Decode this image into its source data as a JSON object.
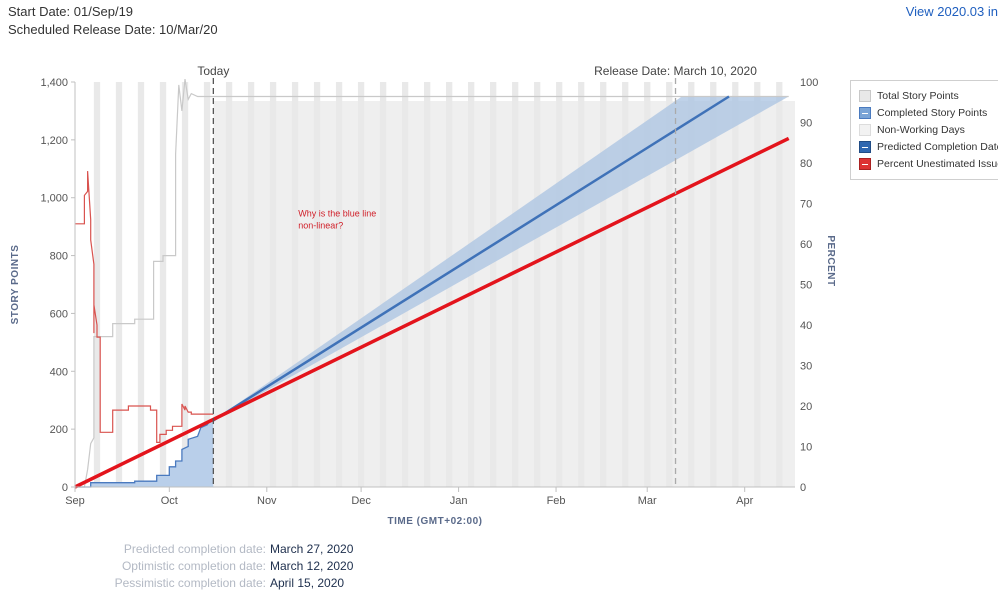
{
  "header": {
    "start_date": "Start Date: 01/Sep/19",
    "scheduled_release": "Scheduled Release Date: 10/Mar/20",
    "view_link": "View 2020.03 in"
  },
  "chart_data": {
    "type": "line",
    "x_axis": {
      "title": "TIME (GMT+02:00)",
      "type": "date",
      "range": [
        "2019-09-01",
        "2020-04-17"
      ],
      "ticks": [
        {
          "date": "2019-09-01",
          "label": "Sep"
        },
        {
          "date": "2019-10-01",
          "label": "Oct"
        },
        {
          "date": "2019-11-01",
          "label": "Nov"
        },
        {
          "date": "2019-12-01",
          "label": "Dec"
        },
        {
          "date": "2020-01-01",
          "label": "Jan"
        },
        {
          "date": "2020-02-01",
          "label": "Feb"
        },
        {
          "date": "2020-03-01",
          "label": "Mar"
        },
        {
          "date": "2020-04-01",
          "label": "Apr"
        }
      ]
    },
    "y_left": {
      "title": "STORY POINTS",
      "range": [
        0,
        1400
      ],
      "ticks": [
        {
          "value": 0,
          "label": "0"
        },
        {
          "value": 200,
          "label": "200"
        },
        {
          "value": 400,
          "label": "400"
        },
        {
          "value": 600,
          "label": "600"
        },
        {
          "value": 800,
          "label": "800"
        },
        {
          "value": 1000,
          "label": "1,000"
        },
        {
          "value": 1200,
          "label": "1,200"
        },
        {
          "value": 1400,
          "label": "1,400"
        }
      ]
    },
    "y_right": {
      "title": "PERCENT",
      "range": [
        0,
        100
      ],
      "ticks": [
        {
          "value": 0,
          "label": "0"
        },
        {
          "value": 10,
          "label": "10"
        },
        {
          "value": 20,
          "label": "20"
        },
        {
          "value": 30,
          "label": "30"
        },
        {
          "value": 40,
          "label": "40"
        },
        {
          "value": 50,
          "label": "50"
        },
        {
          "value": 60,
          "label": "60"
        },
        {
          "value": 70,
          "label": "70"
        },
        {
          "value": 80,
          "label": "80"
        },
        {
          "value": 90,
          "label": "90"
        },
        {
          "value": 100,
          "label": "100"
        }
      ]
    },
    "markers": [
      {
        "name": "Today",
        "label": "Today",
        "date": "2019-10-15"
      },
      {
        "name": "Release",
        "label": "Release Date: March 10, 2020",
        "date": "2020-03-10"
      }
    ],
    "non_working_days": {
      "pattern": "weekends",
      "color": "#e9e9e9"
    },
    "series": [
      {
        "name": "Total Story Points",
        "color": "#c9c9c9",
        "axis": "left",
        "points": [
          {
            "date": "2019-09-01",
            "value": 0
          },
          {
            "date": "2019-09-04",
            "value": 0
          },
          {
            "date": "2019-09-05",
            "value": 60
          },
          {
            "date": "2019-09-06",
            "value": 150
          },
          {
            "date": "2019-09-07",
            "value": 170
          },
          {
            "date": "2019-09-07",
            "value": 520
          },
          {
            "date": "2019-09-13",
            "value": 520
          },
          {
            "date": "2019-09-13",
            "value": 565
          },
          {
            "date": "2019-09-20",
            "value": 565
          },
          {
            "date": "2019-09-20",
            "value": 580
          },
          {
            "date": "2019-09-26",
            "value": 580
          },
          {
            "date": "2019-09-26",
            "value": 780
          },
          {
            "date": "2019-09-29",
            "value": 780
          },
          {
            "date": "2019-09-29",
            "value": 800
          },
          {
            "date": "2019-10-03",
            "value": 800
          },
          {
            "date": "2019-10-03",
            "value": 1150
          },
          {
            "date": "2019-10-04",
            "value": 1390
          },
          {
            "date": "2019-10-05",
            "value": 1300
          },
          {
            "date": "2019-10-06",
            "value": 1410
          },
          {
            "date": "2019-10-07",
            "value": 1340
          },
          {
            "date": "2019-10-08",
            "value": 1360
          },
          {
            "date": "2019-10-10",
            "value": 1350
          },
          {
            "date": "2019-10-15",
            "value": 1350
          },
          {
            "date": "2020-04-15",
            "value": 1350
          }
        ]
      },
      {
        "name": "Completed Story Points",
        "color": "#4a7abf",
        "fill": "#b9cfea",
        "axis": "left",
        "points": [
          {
            "date": "2019-09-01",
            "value": 0
          },
          {
            "date": "2019-09-06",
            "value": 0
          },
          {
            "date": "2019-09-06",
            "value": 15
          },
          {
            "date": "2019-09-20",
            "value": 15
          },
          {
            "date": "2019-09-20",
            "value": 20
          },
          {
            "date": "2019-09-27",
            "value": 20
          },
          {
            "date": "2019-09-27",
            "value": 40
          },
          {
            "date": "2019-10-01",
            "value": 40
          },
          {
            "date": "2019-10-01",
            "value": 70
          },
          {
            "date": "2019-10-03",
            "value": 70
          },
          {
            "date": "2019-10-03",
            "value": 90
          },
          {
            "date": "2019-10-05",
            "value": 90
          },
          {
            "date": "2019-10-05",
            "value": 130
          },
          {
            "date": "2019-10-07",
            "value": 140
          },
          {
            "date": "2019-10-07",
            "value": 165
          },
          {
            "date": "2019-10-10",
            "value": 175
          },
          {
            "date": "2019-10-11",
            "value": 205
          },
          {
            "date": "2019-10-13",
            "value": 215
          },
          {
            "date": "2019-10-14",
            "value": 230
          },
          {
            "date": "2019-10-15",
            "value": 230
          }
        ]
      },
      {
        "name": "Predicted Completion Date",
        "color": "#3f72b8",
        "band_fill": "#aac3e2",
        "axis": "left",
        "points": [
          {
            "date": "2019-10-15",
            "value": 230
          },
          {
            "date": "2020-03-27",
            "value": 1350
          }
        ],
        "band": {
          "optimistic": [
            {
              "date": "2019-10-15",
              "value": 230
            },
            {
              "date": "2020-03-12",
              "value": 1350
            }
          ],
          "pessimistic": [
            {
              "date": "2019-10-15",
              "value": 230
            },
            {
              "date": "2020-04-15",
              "value": 1350
            }
          ]
        }
      },
      {
        "name": "Percent Unestimated Issues",
        "color": "#d9534f",
        "axis": "right",
        "points": [
          {
            "date": "2019-09-01",
            "value": 65
          },
          {
            "date": "2019-09-04",
            "value": 65
          },
          {
            "date": "2019-09-04",
            "value": 72
          },
          {
            "date": "2019-09-05",
            "value": 73
          },
          {
            "date": "2019-09-05",
            "value": 78
          },
          {
            "date": "2019-09-06",
            "value": 66
          },
          {
            "date": "2019-09-06",
            "value": 61
          },
          {
            "date": "2019-09-07",
            "value": 55
          },
          {
            "date": "2019-09-07",
            "value": 38
          },
          {
            "date": "2019-09-07",
            "value": 45
          },
          {
            "date": "2019-09-08",
            "value": 40
          },
          {
            "date": "2019-09-08",
            "value": 37
          },
          {
            "date": "2019-09-09",
            "value": 37
          },
          {
            "date": "2019-09-09",
            "value": 13.5
          },
          {
            "date": "2019-09-13",
            "value": 13.5
          },
          {
            "date": "2019-09-13",
            "value": 19
          },
          {
            "date": "2019-09-18",
            "value": 19
          },
          {
            "date": "2019-09-18",
            "value": 20
          },
          {
            "date": "2019-09-25",
            "value": 20
          },
          {
            "date": "2019-09-25",
            "value": 19
          },
          {
            "date": "2019-09-27",
            "value": 19
          },
          {
            "date": "2019-09-27",
            "value": 11
          },
          {
            "date": "2019-09-28",
            "value": 11
          },
          {
            "date": "2019-09-28",
            "value": 13
          },
          {
            "date": "2019-09-30",
            "value": 13
          },
          {
            "date": "2019-09-30",
            "value": 14
          },
          {
            "date": "2019-10-02",
            "value": 14
          },
          {
            "date": "2019-10-02",
            "value": 15
          },
          {
            "date": "2019-10-05",
            "value": 15
          },
          {
            "date": "2019-10-05",
            "value": 20.5
          },
          {
            "date": "2019-10-06",
            "value": 19
          },
          {
            "date": "2019-10-06",
            "value": 20
          },
          {
            "date": "2019-10-07",
            "value": 18.5
          },
          {
            "date": "2019-10-08",
            "value": 18.5
          },
          {
            "date": "2019-10-08",
            "value": 18
          },
          {
            "date": "2019-10-15",
            "value": 18
          }
        ]
      },
      {
        "name": "Red trend line",
        "color": "#e3141c",
        "axis": "left",
        "points": [
          {
            "date": "2019-09-01",
            "value": 0
          },
          {
            "date": "2020-04-15",
            "value": 1205
          }
        ]
      }
    ],
    "annotation": {
      "lines": [
        "Why is the blue line",
        "non-linear?"
      ],
      "anchor": {
        "date": "2019-11-11",
        "value": 935
      },
      "color": "#d0202a"
    }
  },
  "legend": {
    "items": [
      {
        "label": "Total Story Points",
        "key": "total"
      },
      {
        "label": "Completed Story Points",
        "key": "completed"
      },
      {
        "label": "Non-Working Days",
        "key": "nonworking"
      },
      {
        "label": "Predicted Completion Date",
        "key": "predicted"
      },
      {
        "label": "Percent Unestimated Issues",
        "key": "unestimated"
      }
    ]
  },
  "summary": {
    "predicted_label": "Predicted completion date:",
    "predicted_value": "March 27, 2020",
    "optimistic_label": "Optimistic completion date:",
    "optimistic_value": "March 12, 2020",
    "pessimistic_label": "Pessimistic completion date:",
    "pessimistic_value": "April 15, 2020"
  }
}
